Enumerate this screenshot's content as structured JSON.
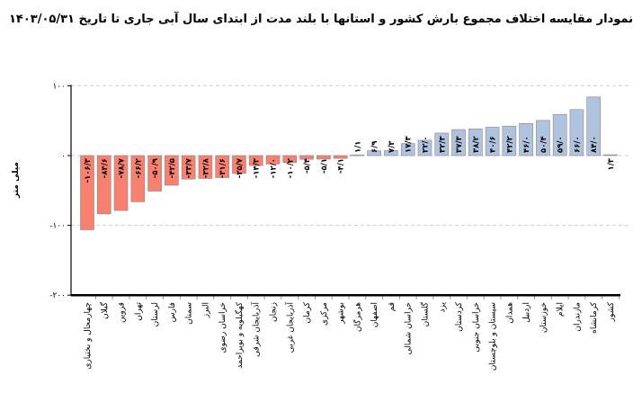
{
  "chart_data": {
    "type": "bar",
    "title": "نمودار مقایسه اختلاف مجموع بارش کشور و استانها با بلند مدت از ابتدای سال آبی جاری تا تاریخ ۱۴۰۳/۰۵/۳۱",
    "ylabel": "میلی متر",
    "xlabel": "",
    "ylim": [
      -200,
      100
    ],
    "yticks": [
      100,
      0,
      -100,
      -200
    ],
    "ytick_labels": [
      "۱۰۰",
      "۰",
      "-۱۰۰",
      "-۲۰۰"
    ],
    "grid": "horizontal dashed",
    "colors": {
      "negative": "#F8806E",
      "positive": "#B0C3DE"
    },
    "categories": [
      "چهارمحال و بختیاری",
      "گیلان",
      "قزوین",
      "تهران",
      "لرستان",
      "فارس",
      "سمنان",
      "البرز",
      "خراسان رضوی",
      "کهگیلویه و بویراحمد",
      "آذربایجان شرقی",
      "زنجان",
      "آذربایجان غربی",
      "کرمان",
      "مرکزی",
      "بوشهر",
      "هرمزگان",
      "اصفهان",
      "قم",
      "خراسان شمالی",
      "گلستان",
      "یزد",
      "کردستان",
      "خراسان جنوبی",
      "سیستان و بلوچستان",
      "همدان",
      "اردبیل",
      "خوزستان",
      "ایلام",
      "مازندران",
      "کرمانشاه",
      "کشور"
    ],
    "values": [
      -106.3,
      -83.6,
      -78.7,
      -66.2,
      -50.9,
      -42.5,
      -33.7,
      -32.8,
      -31.6,
      -25.7,
      -14.3,
      -12.0,
      -10.2,
      -5.4,
      -5.1,
      -4.1,
      1.1,
      6.9,
      7.3,
      17.3,
      22.0,
      32.3,
      37.3,
      38.2,
      40.6,
      42.2,
      46.0,
      50.4,
      59.0,
      66.0,
      84.0,
      1.3
    ],
    "labels": [
      "-۱۰۶/۳",
      "-۸۳/۶",
      "-۷۸/۷",
      "-۶۶/۲",
      "-۵۰/۹",
      "-۴۲/۵",
      "-۳۳/۷",
      "-۳۲/۸",
      "-۳۱/۶",
      "-۲۵/۷",
      "-۱۴/۳",
      "-۱۲/۰",
      "-۱۰/۲",
      "-۵/۴",
      "-۵/۱",
      "-۴/۱",
      "۱/۱",
      "۶/۹",
      "۷/۳",
      "۱۷/۳",
      "۲۲/۰",
      "۳۲/۳",
      "۳۷/۳",
      "۳۸/۲",
      "۴۰/۶",
      "۴۲/۲",
      "۴۶/۰",
      "۵۰/۴",
      "۵۹/۰",
      "۶۶/۰",
      "۸۴/۰",
      "۱/۳"
    ]
  }
}
